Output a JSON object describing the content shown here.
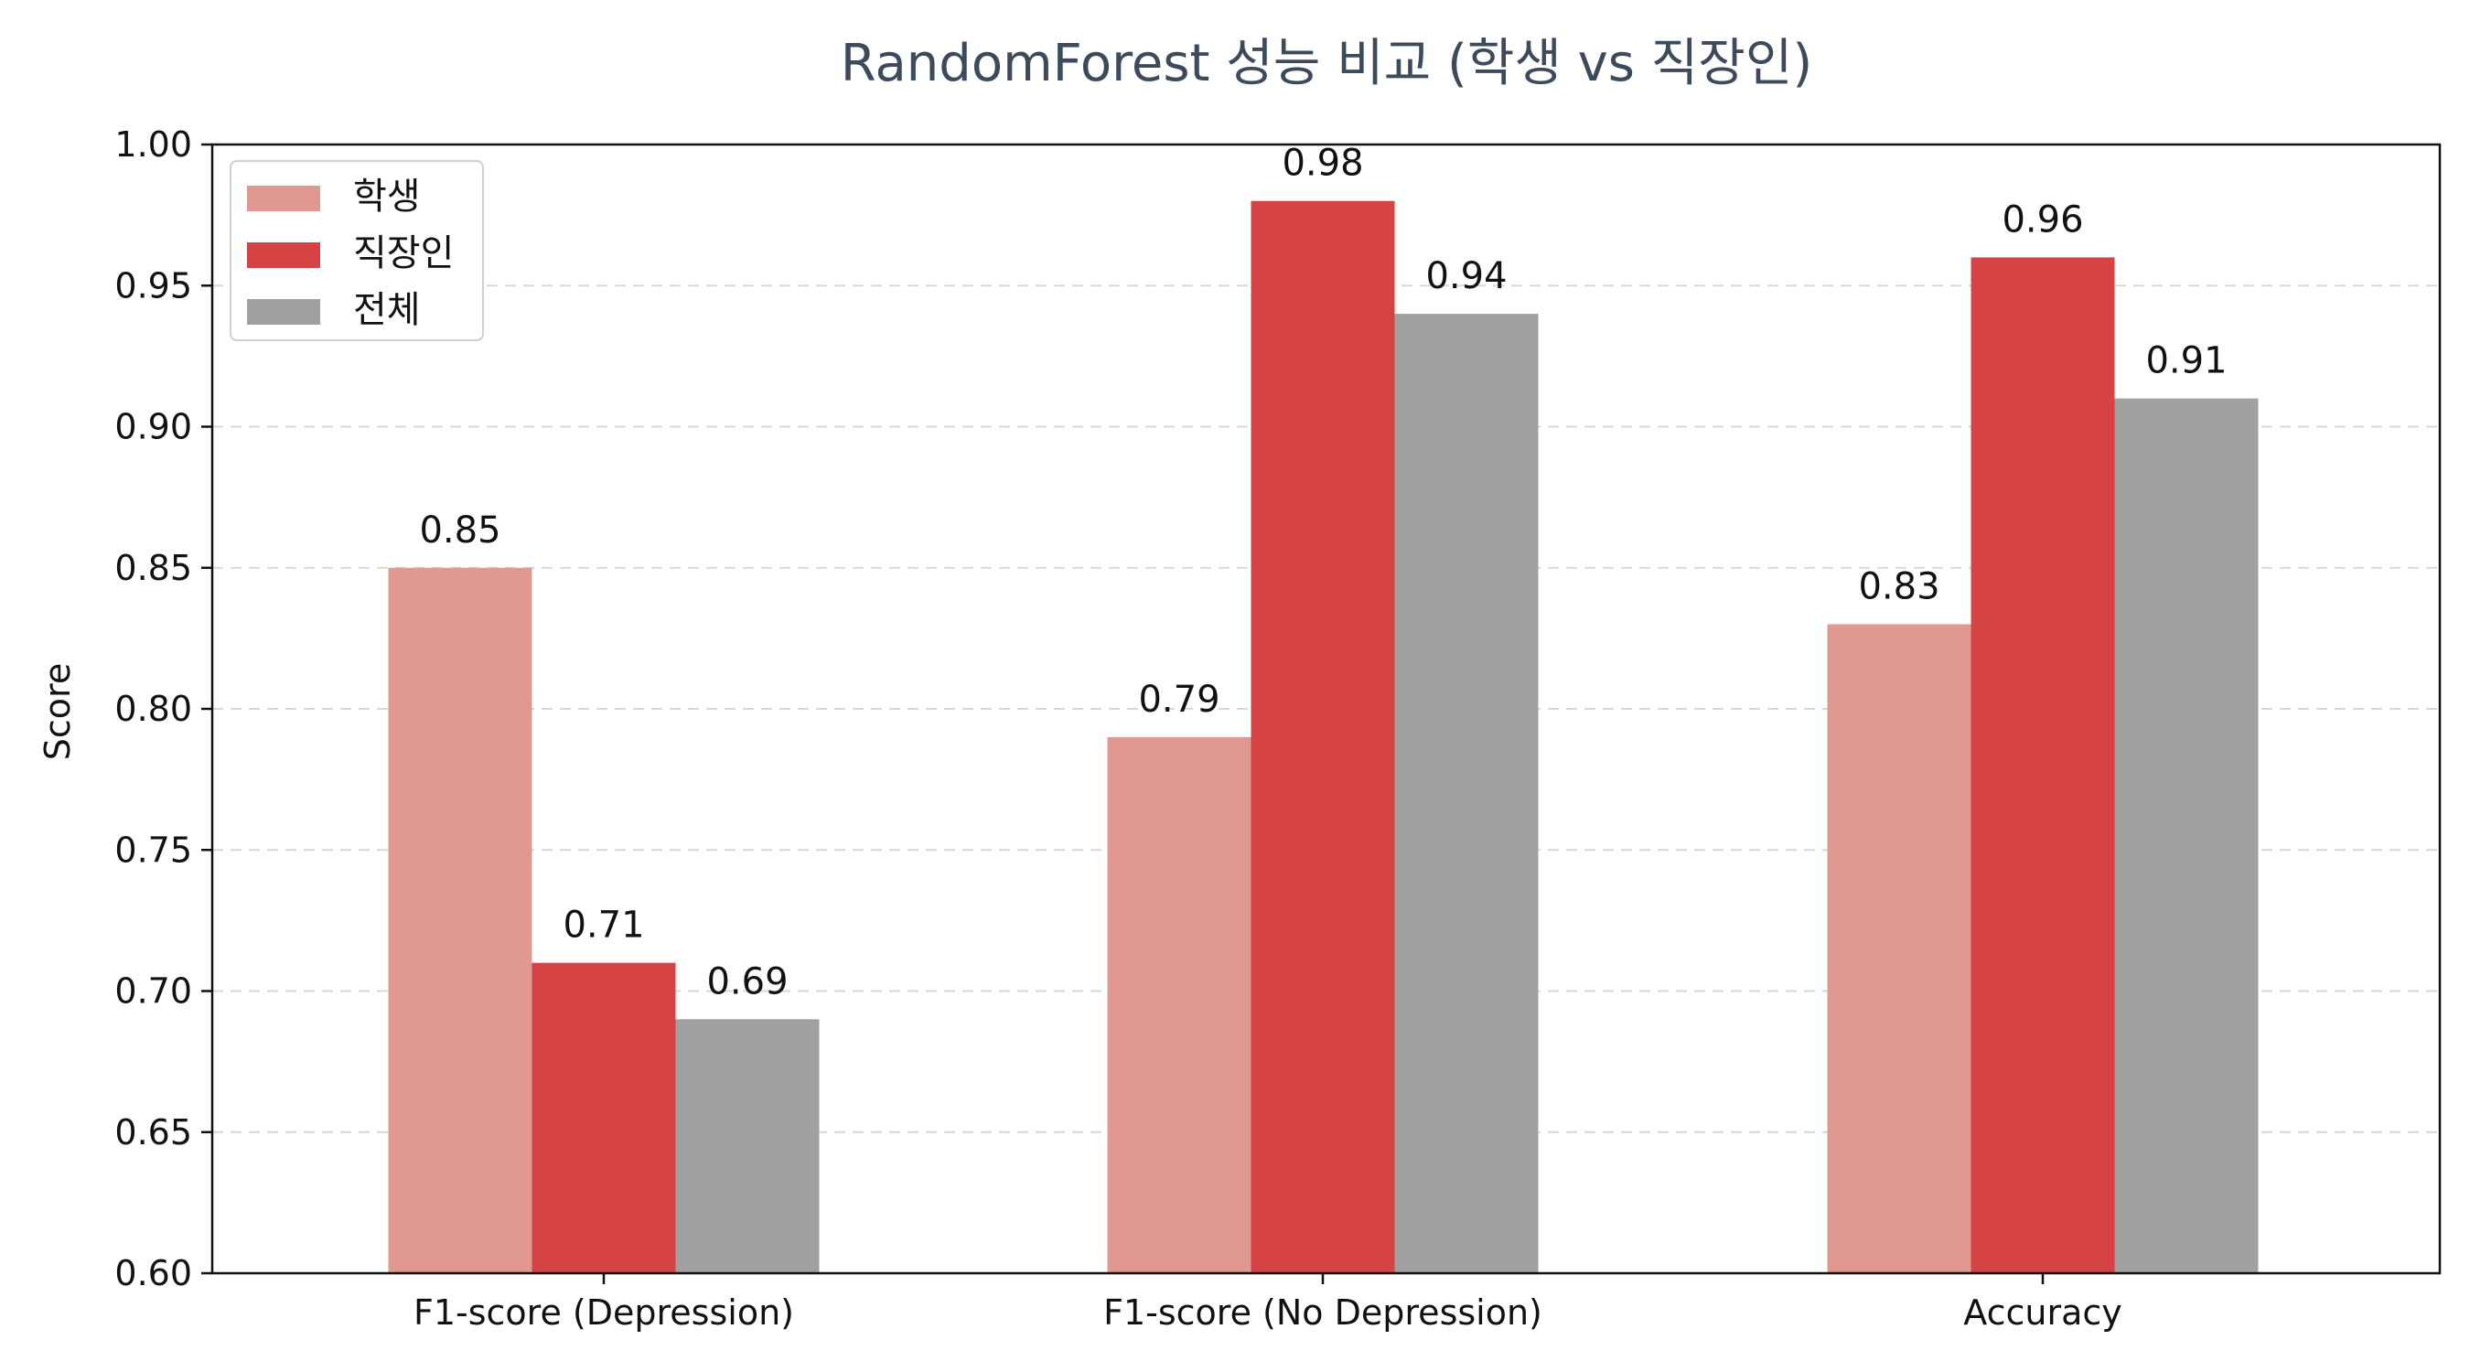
{
  "chart_data": {
    "type": "bar",
    "title": "RandomForest 성능 비교 (학생 vs 직장인)",
    "xlabel": "",
    "ylabel": "Score",
    "ylim": [
      0.6,
      1.0
    ],
    "yticks": [
      "0.60",
      "0.65",
      "0.70",
      "0.75",
      "0.80",
      "0.85",
      "0.90",
      "0.95",
      "1.00"
    ],
    "grid": "horizontal dashed",
    "legend_position": "top-left",
    "categories": [
      "F1-score (Depression)",
      "F1-score (No Depression)",
      "Accuracy"
    ],
    "series": [
      {
        "name": "학생",
        "color": "#e09890",
        "values": [
          0.85,
          0.79,
          0.83
        ],
        "labels": [
          "0.85",
          "0.79",
          "0.83"
        ]
      },
      {
        "name": "직장인",
        "color": "#d54345",
        "values": [
          0.71,
          0.98,
          0.96
        ],
        "labels": [
          "0.71",
          "0.98",
          "0.96"
        ]
      },
      {
        "name": "전체",
        "color": "#a0a0a0",
        "values": [
          0.69,
          0.94,
          0.91
        ],
        "labels": [
          "0.69",
          "0.94",
          "0.91"
        ]
      }
    ]
  }
}
